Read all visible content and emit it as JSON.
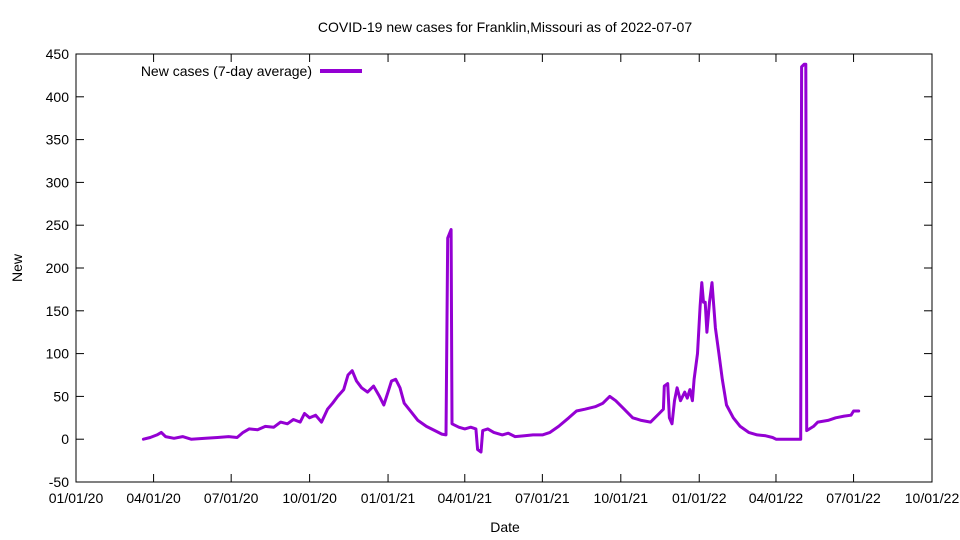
{
  "chart_data": {
    "type": "line",
    "title": "COVID-19 new cases for Franklin,Missouri as of 2022-07-07",
    "xlabel": "Date",
    "ylabel": "New",
    "ylim": [
      -50,
      450
    ],
    "y_ticks": [
      -50,
      0,
      50,
      100,
      150,
      200,
      250,
      300,
      350,
      400,
      450
    ],
    "xlim": [
      "2020-01-01",
      "2022-10-01"
    ],
    "x_ticks": [
      {
        "date": "2020-01-01",
        "label": "01/01/20"
      },
      {
        "date": "2020-04-01",
        "label": "04/01/20"
      },
      {
        "date": "2020-07-01",
        "label": "07/01/20"
      },
      {
        "date": "2020-10-01",
        "label": "10/01/20"
      },
      {
        "date": "2021-01-01",
        "label": "01/01/21"
      },
      {
        "date": "2021-04-01",
        "label": "04/01/21"
      },
      {
        "date": "2021-07-01",
        "label": "07/01/21"
      },
      {
        "date": "2021-10-01",
        "label": "10/01/21"
      },
      {
        "date": "2022-01-01",
        "label": "01/01/22"
      },
      {
        "date": "2022-04-01",
        "label": "04/01/22"
      },
      {
        "date": "2022-07-01",
        "label": "07/01/22"
      },
      {
        "date": "2022-10-01",
        "label": "10/01/22"
      }
    ],
    "grid": false,
    "legend_position": "top-left",
    "series": [
      {
        "name": "New cases (7-day average)",
        "color": "#9400d3",
        "points": [
          [
            "2020-03-20",
            0
          ],
          [
            "2020-03-28",
            2
          ],
          [
            "2020-04-05",
            5
          ],
          [
            "2020-04-10",
            8
          ],
          [
            "2020-04-15",
            3
          ],
          [
            "2020-04-25",
            1
          ],
          [
            "2020-05-05",
            3
          ],
          [
            "2020-05-15",
            0
          ],
          [
            "2020-06-01",
            1
          ],
          [
            "2020-06-15",
            2
          ],
          [
            "2020-06-28",
            3
          ],
          [
            "2020-07-08",
            2
          ],
          [
            "2020-07-15",
            8
          ],
          [
            "2020-07-22",
            12
          ],
          [
            "2020-08-01",
            11
          ],
          [
            "2020-08-10",
            15
          ],
          [
            "2020-08-20",
            14
          ],
          [
            "2020-08-28",
            20
          ],
          [
            "2020-09-05",
            18
          ],
          [
            "2020-09-12",
            23
          ],
          [
            "2020-09-20",
            20
          ],
          [
            "2020-09-25",
            30
          ],
          [
            "2020-10-01",
            25
          ],
          [
            "2020-10-08",
            28
          ],
          [
            "2020-10-15",
            20
          ],
          [
            "2020-10-22",
            35
          ],
          [
            "2020-10-28",
            42
          ],
          [
            "2020-11-03",
            50
          ],
          [
            "2020-11-10",
            58
          ],
          [
            "2020-11-15",
            75
          ],
          [
            "2020-11-20",
            80
          ],
          [
            "2020-11-25",
            68
          ],
          [
            "2020-12-01",
            60
          ],
          [
            "2020-12-08",
            55
          ],
          [
            "2020-12-15",
            62
          ],
          [
            "2020-12-22",
            50
          ],
          [
            "2020-12-27",
            40
          ],
          [
            "2021-01-01",
            55
          ],
          [
            "2021-01-05",
            68
          ],
          [
            "2021-01-10",
            70
          ],
          [
            "2021-01-15",
            60
          ],
          [
            "2021-01-20",
            42
          ],
          [
            "2021-01-28",
            32
          ],
          [
            "2021-02-05",
            22
          ],
          [
            "2021-02-15",
            15
          ],
          [
            "2021-02-25",
            10
          ],
          [
            "2021-03-05",
            6
          ],
          [
            "2021-03-10",
            5
          ],
          [
            "2021-03-12",
            235
          ],
          [
            "2021-03-16",
            245
          ],
          [
            "2021-03-17",
            18
          ],
          [
            "2021-03-25",
            14
          ],
          [
            "2021-04-01",
            12
          ],
          [
            "2021-04-08",
            14
          ],
          [
            "2021-04-14",
            12
          ],
          [
            "2021-04-16",
            -12
          ],
          [
            "2021-04-20",
            -15
          ],
          [
            "2021-04-22",
            10
          ],
          [
            "2021-04-28",
            12
          ],
          [
            "2021-05-05",
            8
          ],
          [
            "2021-05-15",
            5
          ],
          [
            "2021-05-22",
            7
          ],
          [
            "2021-05-30",
            3
          ],
          [
            "2021-06-10",
            4
          ],
          [
            "2021-06-20",
            5
          ],
          [
            "2021-07-01",
            5
          ],
          [
            "2021-07-10",
            8
          ],
          [
            "2021-07-20",
            15
          ],
          [
            "2021-08-01",
            25
          ],
          [
            "2021-08-10",
            33
          ],
          [
            "2021-08-20",
            35
          ],
          [
            "2021-09-01",
            38
          ],
          [
            "2021-09-10",
            42
          ],
          [
            "2021-09-18",
            50
          ],
          [
            "2021-09-25",
            45
          ],
          [
            "2021-10-05",
            35
          ],
          [
            "2021-10-15",
            25
          ],
          [
            "2021-10-25",
            22
          ],
          [
            "2021-11-05",
            20
          ],
          [
            "2021-11-15",
            30
          ],
          [
            "2021-11-20",
            35
          ],
          [
            "2021-11-21",
            62
          ],
          [
            "2021-11-25",
            65
          ],
          [
            "2021-11-27",
            25
          ],
          [
            "2021-11-30",
            18
          ],
          [
            "2021-12-03",
            45
          ],
          [
            "2021-12-06",
            60
          ],
          [
            "2021-12-10",
            45
          ],
          [
            "2021-12-15",
            55
          ],
          [
            "2021-12-18",
            48
          ],
          [
            "2021-12-21",
            58
          ],
          [
            "2021-12-24",
            45
          ],
          [
            "2021-12-26",
            70
          ],
          [
            "2021-12-30",
            100
          ],
          [
            "2022-01-02",
            155
          ],
          [
            "2022-01-04",
            183
          ],
          [
            "2022-01-06",
            160
          ],
          [
            "2022-01-08",
            160
          ],
          [
            "2022-01-10",
            125
          ],
          [
            "2022-01-13",
            160
          ],
          [
            "2022-01-16",
            183
          ],
          [
            "2022-01-20",
            130
          ],
          [
            "2022-01-24",
            100
          ],
          [
            "2022-01-28",
            70
          ],
          [
            "2022-02-02",
            40
          ],
          [
            "2022-02-10",
            25
          ],
          [
            "2022-02-18",
            15
          ],
          [
            "2022-02-28",
            8
          ],
          [
            "2022-03-10",
            5
          ],
          [
            "2022-03-20",
            4
          ],
          [
            "2022-03-28",
            2
          ],
          [
            "2022-04-01",
            0
          ],
          [
            "2022-04-15",
            0
          ],
          [
            "2022-04-30",
            0
          ],
          [
            "2022-05-01",
            435
          ],
          [
            "2022-05-04",
            438
          ],
          [
            "2022-05-06",
            438
          ],
          [
            "2022-05-07",
            10
          ],
          [
            "2022-05-15",
            15
          ],
          [
            "2022-05-20",
            20
          ],
          [
            "2022-06-01",
            22
          ],
          [
            "2022-06-10",
            25
          ],
          [
            "2022-06-20",
            27
          ],
          [
            "2022-06-28",
            28
          ],
          [
            "2022-07-01",
            33
          ],
          [
            "2022-07-07",
            33
          ]
        ]
      }
    ]
  }
}
